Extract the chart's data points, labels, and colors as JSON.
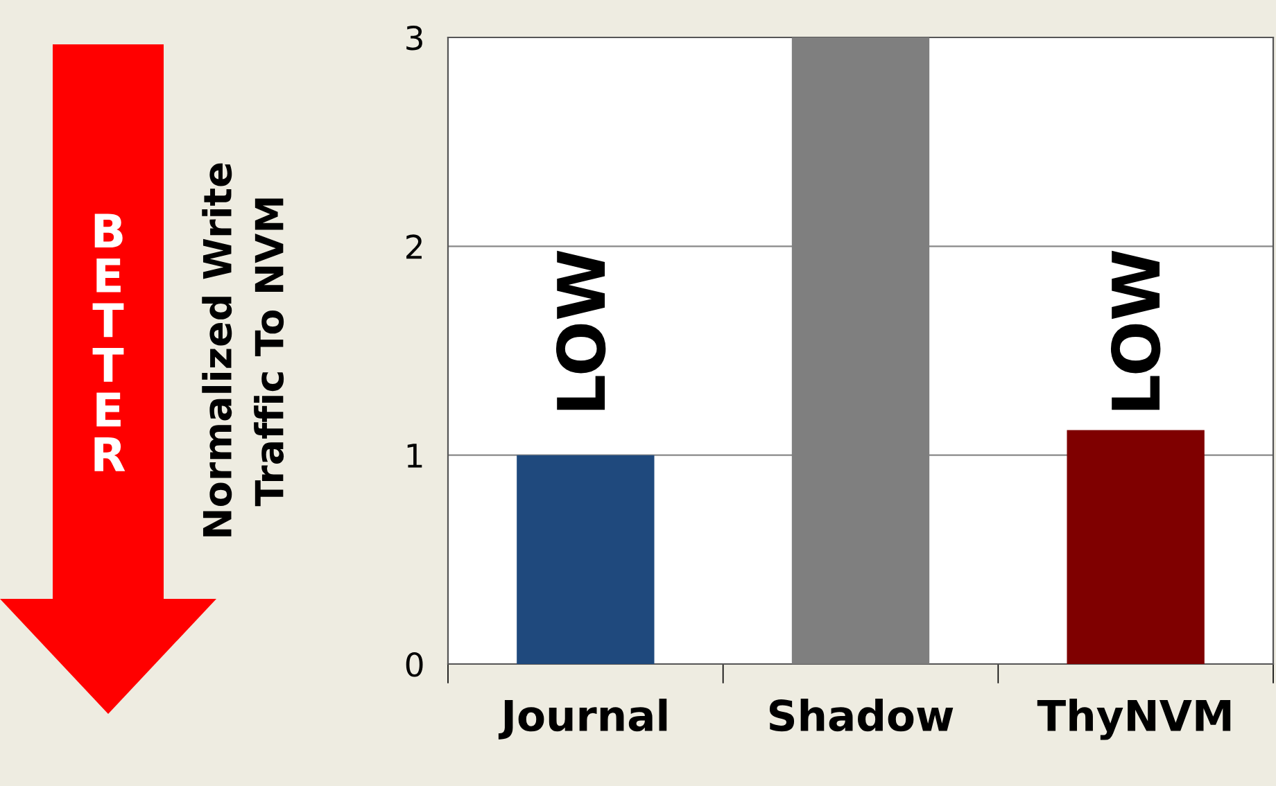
{
  "chart_data": {
    "type": "bar",
    "ylabel": "Normalized Write\nTraffic To NVM",
    "categories": [
      "Journal",
      "Shadow",
      "ThyNVM"
    ],
    "values": [
      1.0,
      3.0,
      1.12
    ],
    "colors": [
      "#1f497d",
      "#7f7f7f",
      "#7f0000"
    ],
    "ylim": [
      0,
      3
    ],
    "yticks": [
      0,
      1,
      2,
      3
    ],
    "grid": "y",
    "annotations": [
      "LOW",
      "LOW",
      "BETTER"
    ]
  }
}
